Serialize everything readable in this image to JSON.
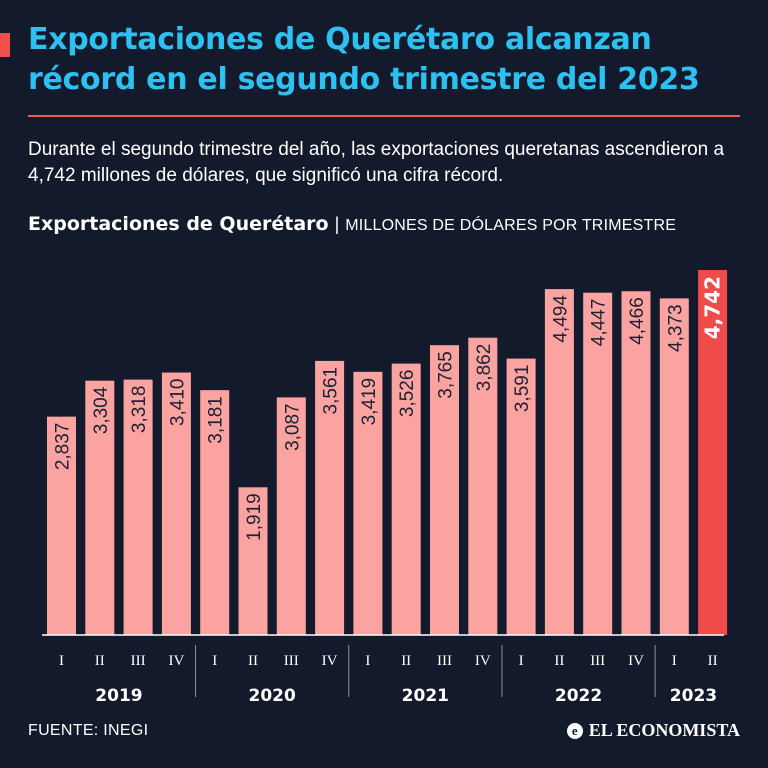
{
  "header": {
    "title": "Exportaciones de Querétaro alcanzan récord en el segundo trimestre del 2023",
    "subtitle": "Durante el segundo trimestre del año, las exportaciones queretanas ascendieron a 4,742 millones de dólares, que significó una cifra récord."
  },
  "chart_data": {
    "type": "bar",
    "title": "Exportaciones de Querétaro",
    "unit_label": "MILLONES DE DÓLARES POR TRIMESTRE",
    "categories": [
      "I",
      "II",
      "III",
      "IV",
      "I",
      "II",
      "III",
      "IV",
      "I",
      "II",
      "III",
      "IV",
      "I",
      "II",
      "III",
      "IV",
      "I",
      "II"
    ],
    "years": [
      {
        "label": "2019",
        "count": 4
      },
      {
        "label": "2020",
        "count": 4
      },
      {
        "label": "2021",
        "count": 4
      },
      {
        "label": "2022",
        "count": 4
      },
      {
        "label": "2023",
        "count": 2
      }
    ],
    "values": [
      2837,
      3304,
      3318,
      3410,
      3181,
      1919,
      3087,
      3561,
      3419,
      3526,
      3765,
      3862,
      3591,
      4494,
      4447,
      4466,
      4373,
      4742
    ],
    "value_labels": [
      "2,837",
      "3,304",
      "3,318",
      "3,410",
      "3,181",
      "1,919",
      "3,087",
      "3,561",
      "3,419",
      "3,526",
      "3,765",
      "3,862",
      "3,591",
      "4,494",
      "4,447",
      "4,466",
      "4,373",
      "4,742"
    ],
    "highlight_index": 17,
    "xlabel": "",
    "ylabel": "",
    "ylim": [
      0,
      4742
    ],
    "grid": false
  },
  "colors": {
    "bar": "#fba3a0",
    "highlight": "#ef4b48",
    "title": "#2ec0f0",
    "background": "#121a2b"
  },
  "footer": {
    "source": "FUENTE: INEGI",
    "brand": "EL ECONOMISTA",
    "brand_icon": "el-economista-logo-icon"
  }
}
